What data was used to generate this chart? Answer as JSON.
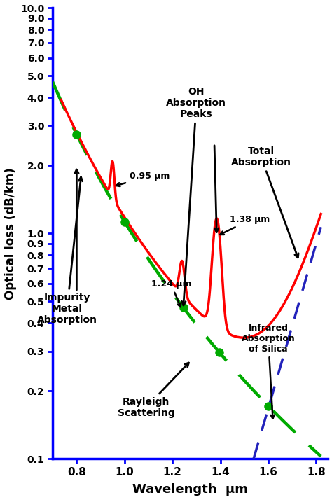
{
  "xlabel": "Wavelength  μm",
  "ylabel": "Optical loss (dB/km)",
  "xlim": [
    0.7,
    1.85
  ],
  "ylim_log": [
    0.1,
    10.0
  ],
  "yticks": [
    0.1,
    0.2,
    0.3,
    0.4,
    0.5,
    0.6,
    0.7,
    0.8,
    0.9,
    1.0,
    2.0,
    3.0,
    4.0,
    5.0,
    6.0,
    7.0,
    8.0,
    9.0,
    10.0
  ],
  "xticks": [
    0.8,
    1.0,
    1.2,
    1.4,
    1.6,
    1.8
  ],
  "rayleigh_color": "#00aa00",
  "total_color": "#ff0000",
  "infrared_color": "#2222bb",
  "dot_color": "#00aa00",
  "axis_color": "#0000ff",
  "background_color": "#ffffff"
}
